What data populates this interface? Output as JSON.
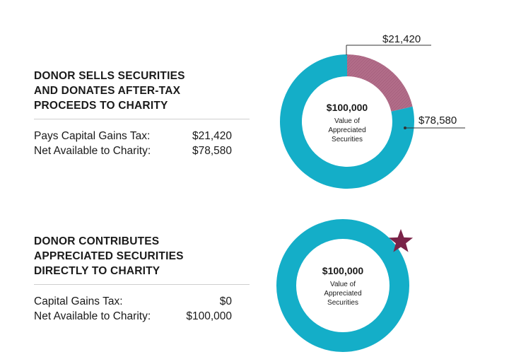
{
  "chart_data": [
    {
      "type": "pie",
      "title": "DONOR SELLS SECURITIES\nAND DONATES AFTER-TAX\nPROCEEDS TO CHARITY",
      "center_value": "$100,000",
      "center_label": [
        "Value of",
        "Appreciated",
        "Securities"
      ],
      "slices": [
        {
          "label": "$21,420",
          "value": 21420,
          "color": "#b26d89"
        },
        {
          "label": "$78,580",
          "value": 78580,
          "color": "#14aec8"
        }
      ],
      "rows": [
        {
          "label": "Pays Capital Gains Tax:",
          "value": "$21,420"
        },
        {
          "label": "Net Available to Charity:",
          "value": "$78,580"
        }
      ]
    },
    {
      "type": "pie",
      "title": "DONOR CONTRIBUTES\nAPPRECIATED SECURITIES\nDIRECTLY TO CHARITY",
      "center_value": "$100,000",
      "center_label": [
        "Value of",
        "Appreciated",
        "Securities"
      ],
      "slices": [
        {
          "label": "",
          "value": 100000,
          "color": "#14aec8"
        }
      ],
      "marker_color": "#7a2348",
      "rows": [
        {
          "label": "Capital Gains Tax:",
          "value": "$0"
        },
        {
          "label": "Net Available to Charity:",
          "value": "$100,000"
        }
      ]
    }
  ]
}
